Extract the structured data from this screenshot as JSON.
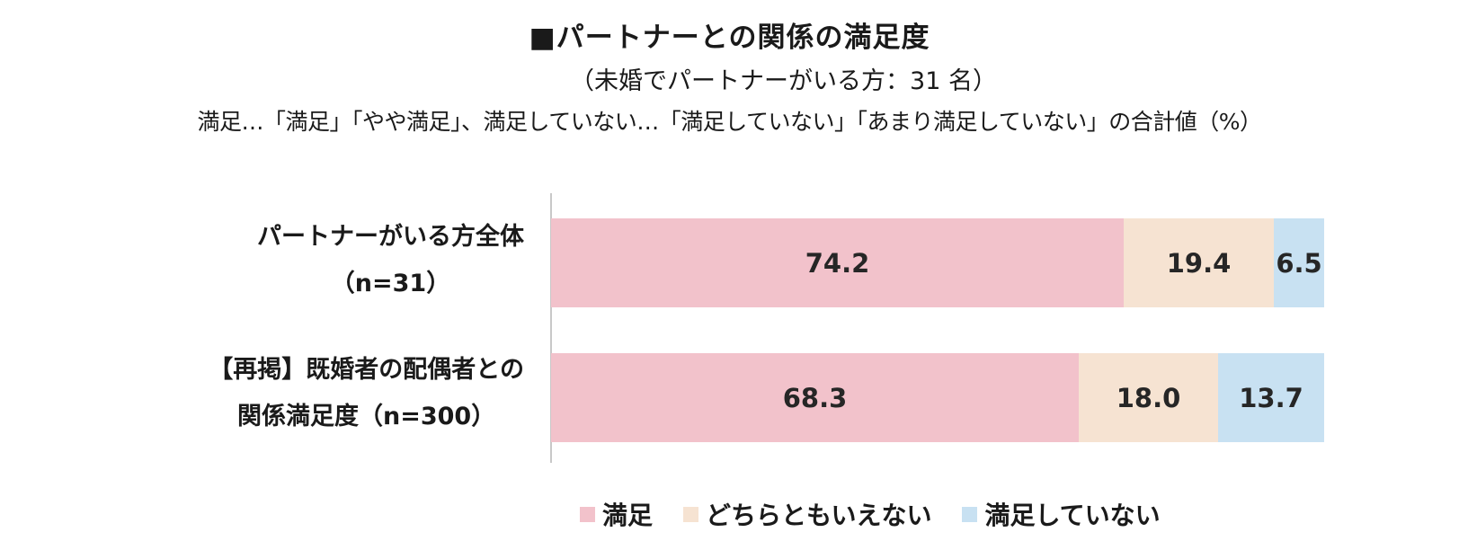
{
  "chart_data": {
    "type": "bar",
    "orientation": "horizontal",
    "stacked": true,
    "title": "■パートナーとの関係の満足度",
    "subtitle": "（未婚でパートナーがいる方：31 名）",
    "note": "満足…「満足」「やや満足」、満足していない…「満足していない」「あまり満足していない」の合計値（%）",
    "categories": [
      {
        "line1": "パートナーがいる方全体",
        "line2": "（n=31）"
      },
      {
        "line1": "【再掲】既婚者の配偶者との",
        "line2": "関係満足度（n=300）"
      }
    ],
    "series": [
      {
        "name": "満足",
        "color": "#f2c2cb",
        "values": [
          74.2,
          68.3
        ]
      },
      {
        "name": "どちらともいえない",
        "color": "#f6e3d2",
        "values": [
          19.4,
          18.0
        ]
      },
      {
        "name": "満足していない",
        "color": "#c8e1f2",
        "values": [
          6.5,
          13.7
        ]
      }
    ],
    "xlim": [
      0,
      100
    ],
    "value_format": 1,
    "legend_position": "bottom",
    "grid": false
  }
}
